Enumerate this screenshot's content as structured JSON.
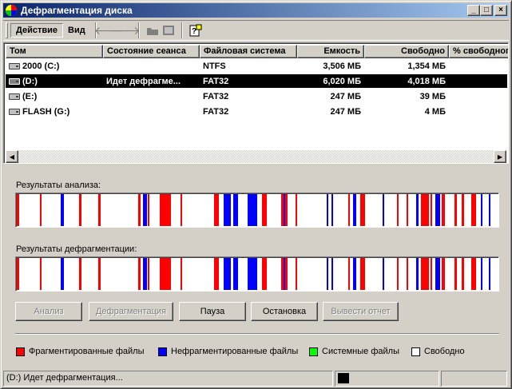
{
  "window": {
    "title": "Дефрагментация диска"
  },
  "menu": {
    "action": "Действие",
    "view": "Вид"
  },
  "columns": [
    "Том",
    "Состояние сеанса",
    "Файловая система",
    "Емкость",
    "Свободно",
    "% свободного"
  ],
  "volumes": [
    {
      "name": "2000 (C:)",
      "status": "",
      "fs": "NTFS",
      "capacity": "3,506 МБ",
      "free": "1,354 МБ"
    },
    {
      "name": "(D:)",
      "status": "Идет дефрагме...",
      "fs": "FAT32",
      "capacity": "6,020 МБ",
      "free": "4,018 МБ"
    },
    {
      "name": "(E:)",
      "status": "",
      "fs": "FAT32",
      "capacity": "247 МБ",
      "free": "39 МБ"
    },
    {
      "name": "FLASH (G:)",
      "status": "",
      "fs": "FAT32",
      "capacity": "247 МБ",
      "free": "4 МБ"
    }
  ],
  "analysis_label": "Результаты анализа:",
  "defrag_label": "Результаты дефрагментации:",
  "buttons": {
    "analyze": "Анализ",
    "defrag": "Дефрагментация",
    "pause": "Пауза",
    "stop": "Остановка",
    "report": "Вывести отчет"
  },
  "legend": {
    "fragmented": "Фрагментированные файлы",
    "contiguous": "Нефрагментированные файлы",
    "system": "Системные файлы",
    "free": "Свободно"
  },
  "colors": {
    "fragmented": "#ff0000",
    "contiguous": "#0000ff",
    "system": "#00ff00",
    "free": "#ffffff"
  },
  "status": {
    "text": "(D:) Идет дефрагментация..."
  },
  "analysis_map": [
    [
      0.0,
      0.005,
      "r"
    ],
    [
      0.048,
      0.051,
      "r"
    ],
    [
      0.092,
      0.098,
      "b"
    ],
    [
      0.13,
      0.135,
      "r"
    ],
    [
      0.17,
      0.174,
      "r"
    ],
    [
      0.253,
      0.258,
      "r"
    ],
    [
      0.262,
      0.27,
      "b"
    ],
    [
      0.272,
      0.276,
      "r"
    ],
    [
      0.298,
      0.32,
      "r"
    ],
    [
      0.34,
      0.344,
      "r"
    ],
    [
      0.41,
      0.42,
      "r"
    ],
    [
      0.43,
      0.445,
      "b"
    ],
    [
      0.45,
      0.46,
      "b"
    ],
    [
      0.48,
      0.5,
      "b"
    ],
    [
      0.51,
      0.52,
      "r"
    ],
    [
      0.55,
      0.56,
      "r"
    ],
    [
      0.555,
      0.558,
      "b"
    ],
    [
      0.56,
      0.562,
      "r"
    ],
    [
      0.58,
      0.582,
      "r"
    ],
    [
      0.645,
      0.646,
      "b"
    ],
    [
      0.655,
      0.657,
      "b"
    ],
    [
      0.69,
      0.692,
      "r"
    ],
    [
      0.7,
      0.706,
      "b"
    ],
    [
      0.715,
      0.725,
      "r"
    ],
    [
      0.76,
      0.762,
      "b"
    ],
    [
      0.79,
      0.792,
      "r"
    ],
    [
      0.81,
      0.812,
      "r"
    ],
    [
      0.83,
      0.835,
      "b"
    ],
    [
      0.84,
      0.857,
      "r"
    ],
    [
      0.86,
      0.862,
      "r"
    ],
    [
      0.87,
      0.88,
      "b"
    ],
    [
      0.883,
      0.89,
      "r"
    ],
    [
      0.91,
      0.915,
      "r"
    ],
    [
      0.925,
      0.93,
      "r"
    ],
    [
      0.945,
      0.955,
      "r"
    ],
    [
      0.965,
      0.967,
      "b"
    ],
    [
      0.981,
      0.983,
      "b"
    ]
  ],
  "defrag_map": [
    [
      0.0,
      0.005,
      "r"
    ],
    [
      0.048,
      0.051,
      "r"
    ],
    [
      0.092,
      0.098,
      "b"
    ],
    [
      0.13,
      0.135,
      "r"
    ],
    [
      0.17,
      0.174,
      "r"
    ],
    [
      0.253,
      0.258,
      "r"
    ],
    [
      0.262,
      0.27,
      "b"
    ],
    [
      0.272,
      0.276,
      "r"
    ],
    [
      0.298,
      0.32,
      "r"
    ],
    [
      0.34,
      0.344,
      "r"
    ],
    [
      0.41,
      0.42,
      "r"
    ],
    [
      0.43,
      0.445,
      "b"
    ],
    [
      0.45,
      0.46,
      "b"
    ],
    [
      0.48,
      0.5,
      "b"
    ],
    [
      0.51,
      0.52,
      "r"
    ],
    [
      0.55,
      0.56,
      "r"
    ],
    [
      0.555,
      0.558,
      "b"
    ],
    [
      0.56,
      0.562,
      "r"
    ],
    [
      0.58,
      0.582,
      "r"
    ],
    [
      0.645,
      0.646,
      "b"
    ],
    [
      0.655,
      0.657,
      "b"
    ],
    [
      0.69,
      0.692,
      "r"
    ],
    [
      0.7,
      0.706,
      "b"
    ],
    [
      0.715,
      0.725,
      "r"
    ],
    [
      0.76,
      0.762,
      "b"
    ],
    [
      0.79,
      0.792,
      "r"
    ],
    [
      0.81,
      0.812,
      "r"
    ],
    [
      0.83,
      0.835,
      "b"
    ],
    [
      0.84,
      0.857,
      "r"
    ],
    [
      0.86,
      0.862,
      "r"
    ],
    [
      0.87,
      0.88,
      "b"
    ],
    [
      0.883,
      0.89,
      "r"
    ],
    [
      0.91,
      0.915,
      "r"
    ],
    [
      0.925,
      0.93,
      "r"
    ],
    [
      0.945,
      0.955,
      "r"
    ],
    [
      0.965,
      0.967,
      "b"
    ],
    [
      0.981,
      0.983,
      "b"
    ]
  ]
}
